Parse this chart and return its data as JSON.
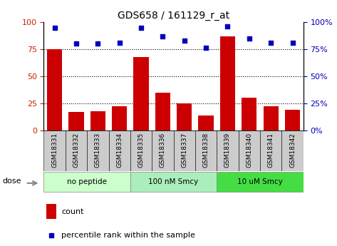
{
  "title": "GDS658 / 161129_r_at",
  "samples": [
    "GSM18331",
    "GSM18332",
    "GSM18333",
    "GSM18334",
    "GSM18335",
    "GSM18336",
    "GSM18337",
    "GSM18338",
    "GSM18339",
    "GSM18340",
    "GSM18341",
    "GSM18342"
  ],
  "counts": [
    75,
    17,
    18,
    22,
    68,
    35,
    25,
    14,
    87,
    30,
    22,
    19
  ],
  "percentiles": [
    95,
    80,
    80,
    81,
    95,
    87,
    83,
    76,
    96,
    85,
    81,
    81
  ],
  "bar_color": "#CC0000",
  "dot_color": "#0000BB",
  "groups": [
    {
      "label": "no peptide",
      "start": 0,
      "end": 3,
      "color": "#CCFFCC"
    },
    {
      "label": "100 nM Smcy",
      "start": 4,
      "end": 7,
      "color": "#AAEEBB"
    },
    {
      "label": "10 uM Smcy",
      "start": 8,
      "end": 11,
      "color": "#44DD44"
    }
  ],
  "dose_label": "dose",
  "ylim_left": [
    0,
    100
  ],
  "ylim_right": [
    0,
    100
  ],
  "yticks": [
    0,
    25,
    50,
    75,
    100
  ],
  "tick_label_color_left": "#CC2200",
  "tick_label_color_right": "#0000BB",
  "legend_count_label": "count",
  "legend_pct_label": "percentile rank within the sample",
  "tick_bgcolor": "#CCCCCC"
}
